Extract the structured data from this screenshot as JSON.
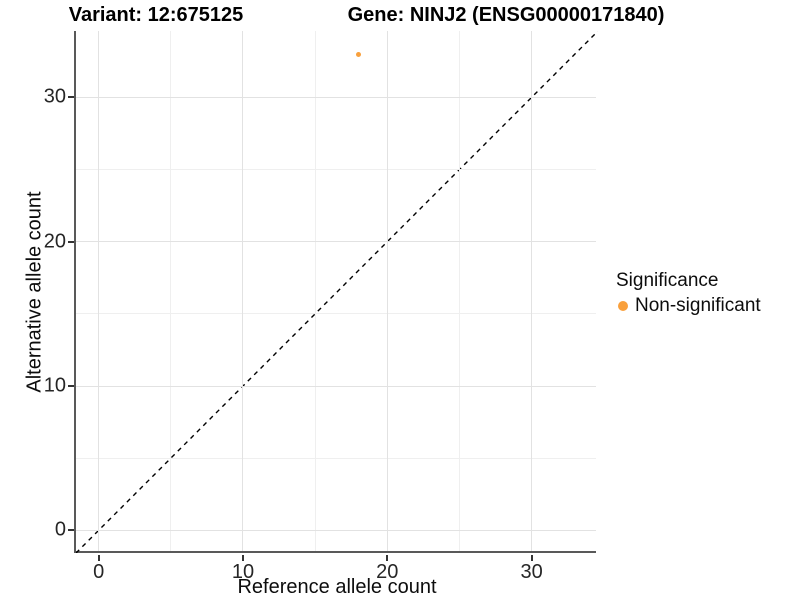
{
  "title_left": "Variant: 12:675125",
  "title_right": "Gene: NINJ2 (ENSG00000171840)",
  "chart_data": {
    "type": "scatter",
    "xlabel": "Reference allele count",
    "ylabel": "Alternative allele count",
    "xlim": [
      -1.57,
      34.6
    ],
    "ylim": [
      -1.57,
      34.6
    ],
    "x_major_ticks": [
      0,
      10,
      20,
      30
    ],
    "y_major_ticks": [
      0,
      10,
      20,
      30
    ],
    "x_minor_ticks": [
      5,
      15,
      25
    ],
    "y_minor_ticks": [
      5,
      15,
      25
    ],
    "grid": "major and minor gridlines on, white panel",
    "points": [
      {
        "x": 18,
        "y": 33,
        "series": "Non-significant",
        "color": "#F9A03C"
      }
    ],
    "reference_line": {
      "kind": "identity y=x",
      "style": "dashed",
      "color": "#000000"
    },
    "legend": {
      "position": "right",
      "title": "Significance",
      "entries": [
        {
          "label": "Non-significant",
          "color": "#F9A03C"
        }
      ]
    }
  },
  "colors": {
    "accent_orange": "#F9A03C",
    "grid_major": "#e2e2e2",
    "grid_minor": "#efefef",
    "axis_line": "#595959",
    "tick_mark": "#333333",
    "text": "#000000"
  }
}
